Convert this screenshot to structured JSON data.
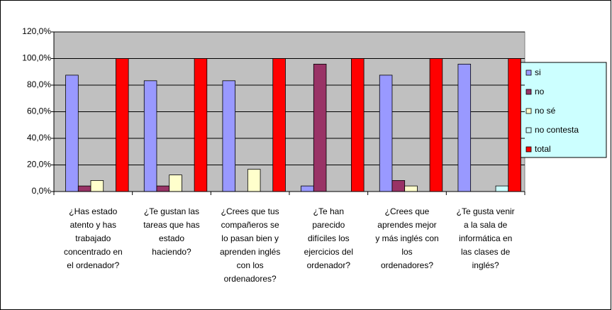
{
  "chart_data": {
    "type": "bar",
    "categories": [
      [
        "¿Has estado",
        "atento y has",
        "trabajado",
        "concentrado en",
        "el ordenador?"
      ],
      [
        "¿Te gustan las",
        "tareas que has",
        "estado",
        "haciendo?"
      ],
      [
        "¿Crees que tus",
        "compañeros se",
        "lo pasan bien y",
        "aprenden inglés",
        "con los",
        "ordenadores?"
      ],
      [
        "¿Te han",
        "parecido",
        "difíciles los",
        "ejercicios del",
        "ordenador?"
      ],
      [
        "¿Crees que",
        "aprendes mejor",
        "y más inglés con",
        "los",
        "ordenadores?"
      ],
      [
        "¿Te gusta venir",
        "a la sala de",
        "informática en",
        "las clases de",
        "inglés?"
      ]
    ],
    "series": [
      {
        "name": "si",
        "color": "#9999ff",
        "values": [
          87.5,
          83.3,
          83.3,
          4.2,
          87.5,
          95.8
        ]
      },
      {
        "name": "no",
        "color": "#993366",
        "values": [
          4.2,
          4.2,
          0,
          95.8,
          8.3,
          0
        ]
      },
      {
        "name": "no sé",
        "color": "#ffffcc",
        "values": [
          8.3,
          12.5,
          16.7,
          0,
          4.2,
          0
        ]
      },
      {
        "name": "no contesta",
        "color": "#ccffff",
        "values": [
          0,
          0,
          0,
          0,
          0,
          4.2
        ]
      },
      {
        "name": "total",
        "color": "#ff0000",
        "values": [
          100,
          100,
          100,
          100,
          100,
          100
        ]
      }
    ],
    "ylim": [
      0,
      120
    ],
    "yticks": [
      {
        "value": 0,
        "label": "0,0%"
      },
      {
        "value": 20,
        "label": "20,0%"
      },
      {
        "value": 40,
        "label": "40,0%"
      },
      {
        "value": 60,
        "label": "60,0%"
      },
      {
        "value": 80,
        "label": "80,0%"
      },
      {
        "value": 100,
        "label": "100,0%"
      },
      {
        "value": 120,
        "label": "120,0%"
      }
    ],
    "grid": true,
    "legend": "right"
  }
}
